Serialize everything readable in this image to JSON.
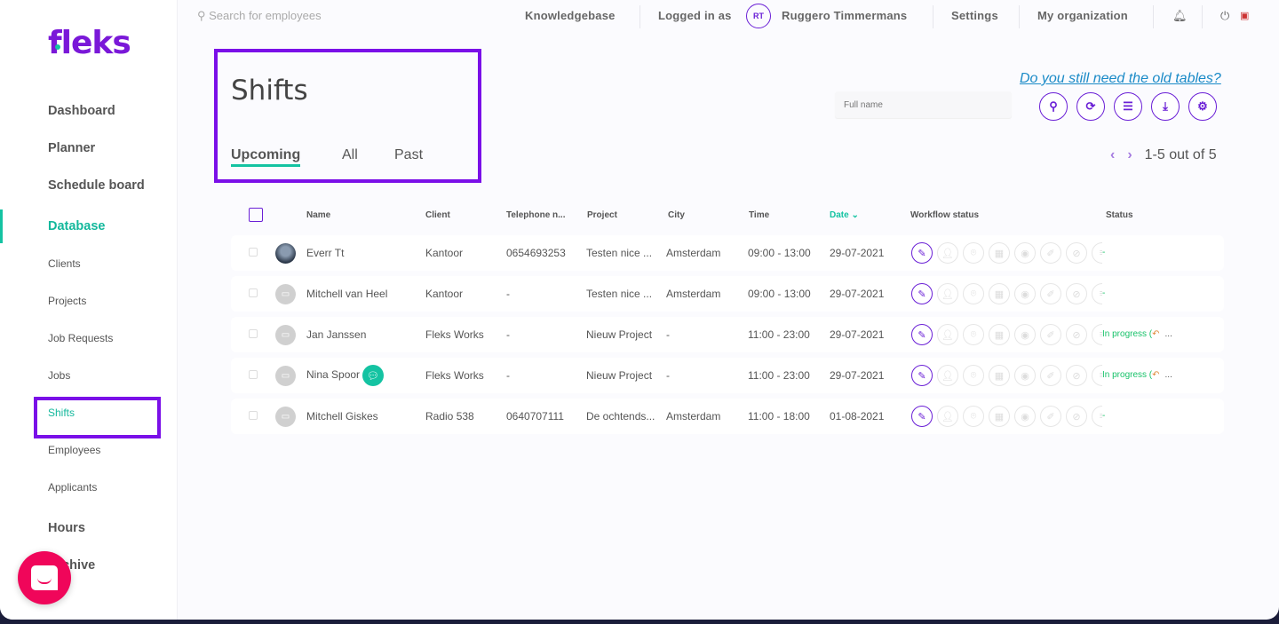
{
  "brand": {
    "logo": "fleks",
    "accent": "#6a1fd6",
    "teal": "#14c3a2"
  },
  "topbar": {
    "search_placeholder": "Search for employees",
    "knowledgebase": "Knowledgebase",
    "logged_in_as": "Logged in as",
    "user_initials": "RT",
    "user_name": "Ruggero Timmermans",
    "settings": "Settings",
    "my_organization": "My organization"
  },
  "sidebar": {
    "items": [
      {
        "label": "Dashboard",
        "type": "main"
      },
      {
        "label": "Planner",
        "type": "main"
      },
      {
        "label": "Schedule board",
        "type": "main"
      },
      {
        "label": "Database",
        "type": "main",
        "active": true
      },
      {
        "label": "Clients",
        "type": "sub"
      },
      {
        "label": "Projects",
        "type": "sub"
      },
      {
        "label": "Job Requests",
        "type": "sub"
      },
      {
        "label": "Jobs",
        "type": "sub"
      },
      {
        "label": "Shifts",
        "type": "sub",
        "active": true
      },
      {
        "label": "Employees",
        "type": "sub"
      },
      {
        "label": "Applicants",
        "type": "sub"
      },
      {
        "label": "Hours",
        "type": "main"
      },
      {
        "label": "Archive",
        "type": "main"
      }
    ]
  },
  "page": {
    "title": "Shifts",
    "tabs": [
      "Upcoming",
      "All",
      "Past"
    ],
    "active_tab": "Upcoming",
    "old_tables_link": "Do you still need the old tables?",
    "fullname_placeholder": "Full name",
    "pagination": "1-5 out of 5"
  },
  "toolbar_icons": [
    "search-icon",
    "refresh-icon",
    "filter-icon",
    "download-icon",
    "settings-icon"
  ],
  "table": {
    "columns": [
      "Name",
      "Client",
      "Telephone n...",
      "Project",
      "City",
      "Time",
      "Date ⌄",
      "Workflow status",
      "Status"
    ],
    "sorted_column": "Date",
    "rows": [
      {
        "name": "Everr Tt",
        "client": "Kantoor",
        "phone": "0654693253",
        "project": "Testen nice ...",
        "city": "Amsterdam",
        "time": "09:00 - 13:00",
        "date": "29-07-2021",
        "status": "-",
        "photo": true
      },
      {
        "name": "Mitchell van Heel",
        "client": "Kantoor",
        "phone": "-",
        "project": "Testen nice ...",
        "city": "Amsterdam",
        "time": "09:00 - 13:00",
        "date": "29-07-2021",
        "status": "-"
      },
      {
        "name": "Jan Janssen",
        "client": "Fleks Works",
        "phone": "-",
        "project": "Nieuw Project",
        "city": "-",
        "time": "11:00 - 23:00",
        "date": "29-07-2021",
        "status": "In progress (",
        "status_more": "..."
      },
      {
        "name": "Nina Spoor",
        "client": "Fleks Works",
        "phone": "-",
        "project": "Nieuw Project",
        "city": "-",
        "time": "11:00 - 23:00",
        "date": "29-07-2021",
        "status": "In progress (",
        "status_more": "...",
        "chat": true
      },
      {
        "name": "Mitchell Giskes",
        "client": "Radio 538",
        "phone": "0640707111",
        "project": "De ochtends...",
        "city": "Amsterdam",
        "time": "11:00 - 18:00",
        "date": "01-08-2021",
        "status": "-"
      }
    ],
    "workflow_icons": [
      "edit-icon",
      "user-clock-icon",
      "location-icon",
      "qr-icon",
      "camera-icon",
      "note-icon",
      "user-slash-icon",
      "list-icon"
    ]
  }
}
